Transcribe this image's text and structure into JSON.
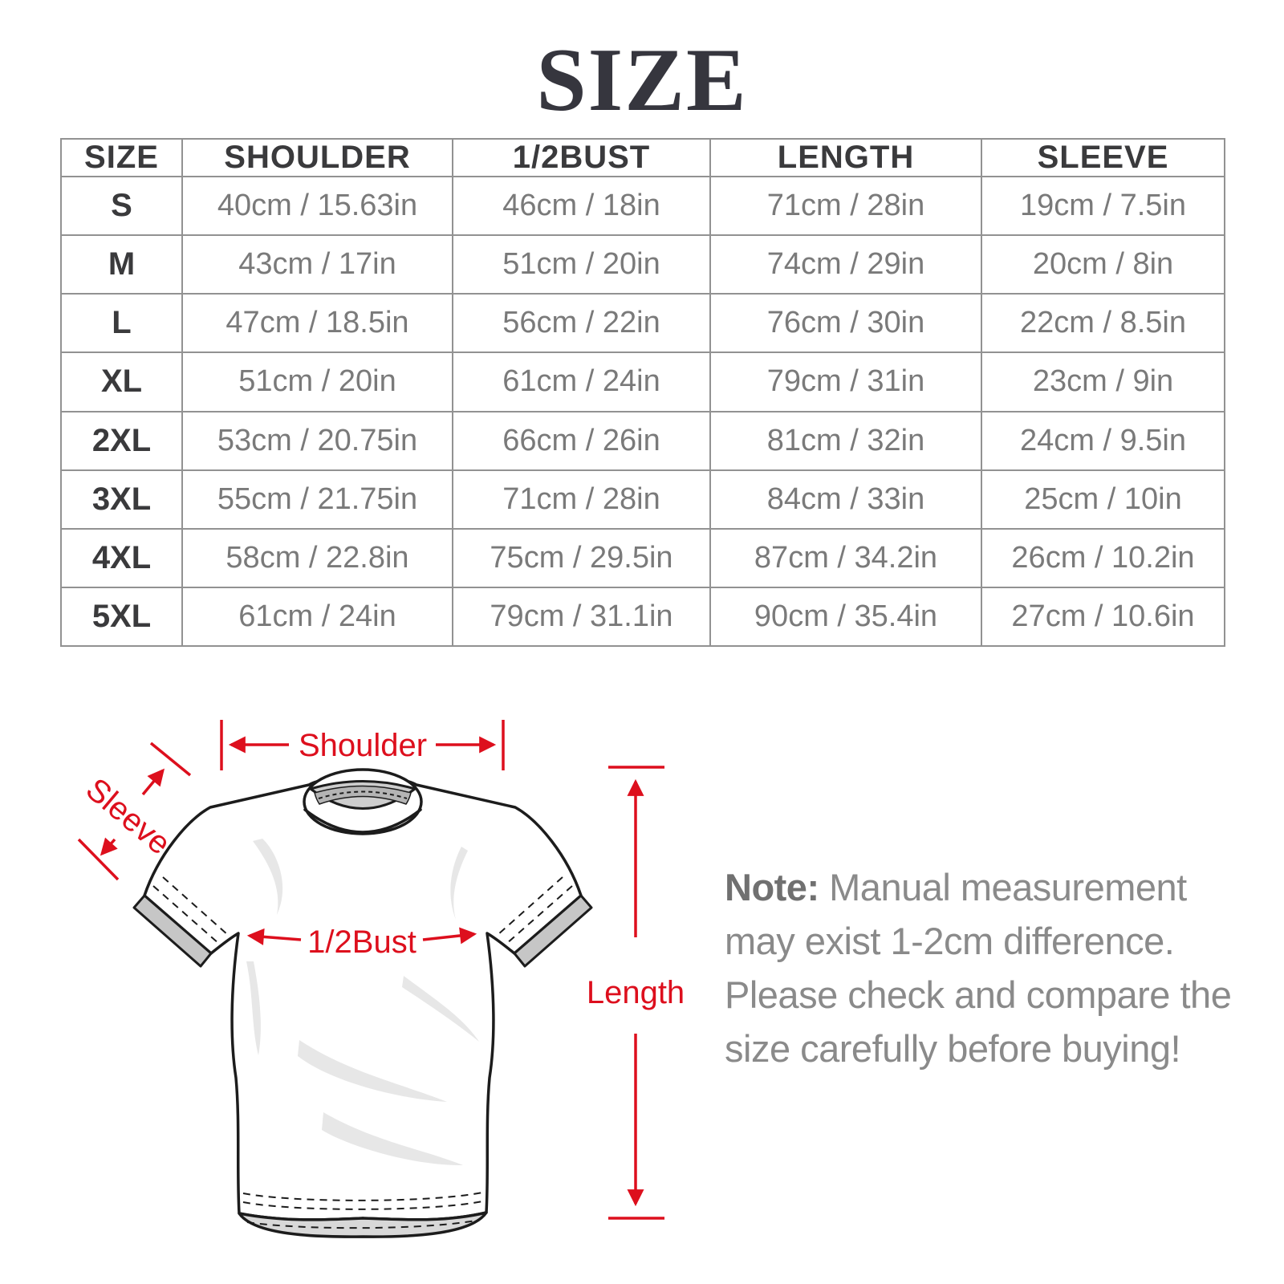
{
  "title": "SIZE",
  "table": {
    "headers": [
      "SIZE",
      "SHOULDER",
      "1/2BUST",
      "LENGTH",
      "SLEEVE"
    ],
    "rows": [
      [
        "S",
        "40cm / 15.63in",
        "46cm / 18in",
        "71cm / 28in",
        "19cm / 7.5in"
      ],
      [
        "M",
        "43cm / 17in",
        "51cm / 20in",
        "74cm / 29in",
        "20cm / 8in"
      ],
      [
        "L",
        "47cm / 18.5in",
        "56cm / 22in",
        "76cm / 30in",
        "22cm / 8.5in"
      ],
      [
        "XL",
        "51cm / 20in",
        "61cm / 24in",
        "79cm / 31in",
        "23cm / 9in"
      ],
      [
        "2XL",
        "53cm / 20.75in",
        "66cm / 26in",
        "81cm / 32in",
        "24cm / 9.5in"
      ],
      [
        "3XL",
        "55cm / 21.75in",
        "71cm / 28in",
        "84cm / 33in",
        "25cm / 10in"
      ],
      [
        "4XL",
        "58cm / 22.8in",
        "75cm / 29.5in",
        "87cm / 34.2in",
        "26cm / 10.2in"
      ],
      [
        "5XL",
        "61cm / 24in",
        "79cm / 31.1in",
        "90cm / 35.4in",
        "27cm / 10.6in"
      ]
    ]
  },
  "diagram": {
    "shoulder_label": "Shoulder",
    "sleeve_label": "Sleeve",
    "bust_label": "1/2Bust",
    "length_label": "Length",
    "accent_color": "#dd0f1d"
  },
  "note": {
    "prefix": "Note:",
    "body": " Manual measurement may exist 1-2cm difference. Please check and compare the size carefully before buying!"
  }
}
